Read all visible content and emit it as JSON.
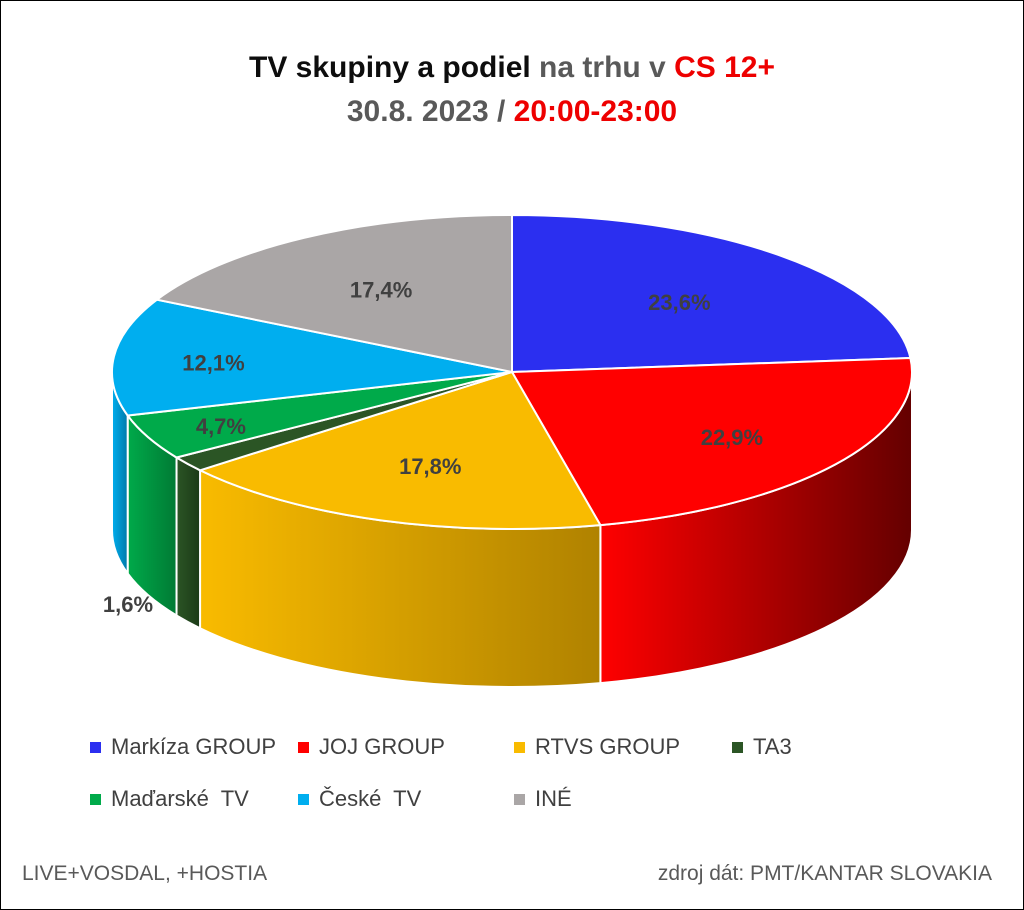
{
  "title": {
    "line1_part1": "TV skupiny a podiel",
    "line1_part2": " na trhu v ",
    "line1_part3": "CS 12+",
    "line2_part1": "30.8. 2023 / ",
    "line2_part2": "20:00-23:00"
  },
  "chart_data": {
    "type": "pie",
    "title": "TV skupiny a podiel na trhu v CS 12+ 30.8. 2023 / 20:00-23:00",
    "categories": [
      "Markíza GROUP",
      "JOJ GROUP",
      "RTVS GROUP",
      "TA3",
      "Maďarské  TV",
      "České  TV",
      "INÉ"
    ],
    "values": [
      23.6,
      22.9,
      17.8,
      1.6,
      4.7,
      12.1,
      17.4
    ],
    "labels": [
      "23,6%",
      "22,9%",
      "17,8%",
      "1,6%",
      "4,7%",
      "12,1%",
      "17,4%"
    ],
    "colors": [
      "#2b2ff0",
      "#ff0000",
      "#f9bb00",
      "#2b5525",
      "#00aa4a",
      "#00aeef",
      "#aaa6a6"
    ],
    "side_colors": [
      "#1a1d96",
      "#640000",
      "#b08200",
      "#1b3a17",
      "#007a34",
      "#0079a8",
      "#767272"
    ],
    "legend_position": "bottom",
    "start_angle_deg": 0,
    "direction": "clockwise"
  },
  "footer": {
    "left": "LIVE+VOSDAL, +HOSTIA",
    "right": "zdroj dát: PMT/KANTAR SLOVAKIA"
  }
}
